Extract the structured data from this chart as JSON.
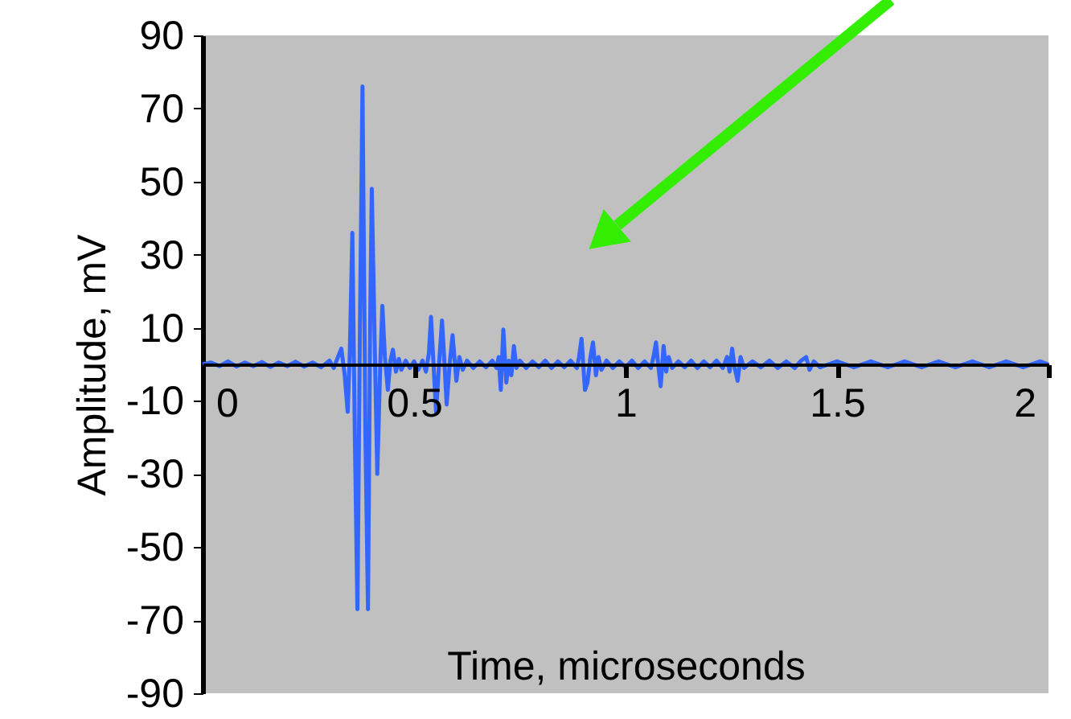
{
  "chart_data": {
    "type": "line",
    "xlabel": "Time, microseconds",
    "ylabel": "Amplitude, mV",
    "xlim": [
      0,
      2
    ],
    "xticks": [
      0,
      0.5,
      1,
      1.5,
      2
    ],
    "ylim": [
      -90,
      90
    ],
    "yticks": [
      -90,
      -70,
      -50,
      -30,
      -10,
      10,
      30,
      50,
      70,
      90
    ],
    "grid": false,
    "legend": false,
    "marker": "none",
    "line_style": "solid",
    "series": [
      {
        "color": "#3366ff",
        "x": [
          0,
          0.02,
          0.04,
          0.06,
          0.08,
          0.1,
          0.12,
          0.14,
          0.16,
          0.18,
          0.2,
          0.22,
          0.24,
          0.26,
          0.28,
          0.3,
          0.31,
          0.32,
          0.328,
          0.336,
          0.343,
          0.348,
          0.354,
          0.36,
          0.366,
          0.372,
          0.378,
          0.385,
          0.391,
          0.396,
          0.4,
          0.407,
          0.413,
          0.42,
          0.425,
          0.431,
          0.438,
          0.444,
          0.45,
          0.457,
          0.464,
          0.47,
          0.48,
          0.49,
          0.5,
          0.51,
          0.52,
          0.528,
          0.535,
          0.54,
          0.546,
          0.552,
          0.559,
          0.566,
          0.572,
          0.577,
          0.584,
          0.591,
          0.596,
          0.6,
          0.607,
          0.615,
          0.625,
          0.64,
          0.655,
          0.67,
          0.685,
          0.695,
          0.7,
          0.705,
          0.711,
          0.718,
          0.724,
          0.73,
          0.736,
          0.742,
          0.75,
          0.765,
          0.78,
          0.795,
          0.81,
          0.825,
          0.84,
          0.855,
          0.87,
          0.885,
          0.89,
          0.896,
          0.904,
          0.91,
          0.917,
          0.923,
          0.93,
          0.936,
          0.943,
          0.955,
          0.97,
          0.985,
          1.0,
          1.015,
          1.03,
          1.045,
          1.06,
          1.066,
          1.072,
          1.077,
          1.083,
          1.09,
          1.096,
          1.102,
          1.11,
          1.125,
          1.14,
          1.155,
          1.17,
          1.185,
          1.2,
          1.215,
          1.23,
          1.24,
          1.246,
          1.252,
          1.258,
          1.265,
          1.272,
          1.28,
          1.3,
          1.32,
          1.34,
          1.36,
          1.38,
          1.4,
          1.415,
          1.427,
          1.435,
          1.445,
          1.46,
          1.5,
          1.54,
          1.58,
          1.62,
          1.66,
          1.7,
          1.74,
          1.78,
          1.82,
          1.86,
          1.9,
          1.94,
          1.98,
          2
        ],
        "values": [
          0,
          0.5,
          -0.5,
          0.8,
          -0.6,
          0.5,
          -0.5,
          0.6,
          -0.7,
          0.5,
          -0.5,
          0.7,
          -0.6,
          0.5,
          -0.8,
          1,
          -1,
          2,
          4.3,
          -3,
          -13,
          3,
          36,
          -20,
          -67,
          10,
          76,
          -20,
          -67,
          10,
          48,
          5,
          -30,
          0,
          16,
          2,
          -7,
          1,
          4,
          -2,
          1.5,
          -1.5,
          1,
          -1,
          0.8,
          -1.5,
          1,
          -2,
          3,
          13,
          0,
          -13,
          0,
          12,
          0,
          -11,
          0,
          8,
          1,
          -4.5,
          2,
          -1.5,
          1,
          -1,
          0.8,
          -0.8,
          1,
          -1,
          2,
          -7,
          9.5,
          -5,
          1,
          -3,
          5,
          -1,
          1,
          -1,
          0.8,
          -0.8,
          1,
          -1,
          0.8,
          -0.8,
          1,
          -1,
          2,
          7,
          -7,
          -5,
          2,
          6,
          -3,
          2,
          -1.5,
          1,
          -1,
          0.8,
          -0.8,
          1,
          -1,
          0.8,
          -1,
          2,
          6,
          0,
          -6,
          5,
          -2,
          2,
          -1,
          0.8,
          -0.8,
          1,
          -1,
          0.8,
          -0.8,
          1,
          -1,
          2,
          -2,
          4.3,
          -1,
          -4.5,
          2,
          -1,
          0.8,
          -0.8,
          1,
          -1,
          0.8,
          -1,
          1,
          2,
          -1.5,
          0.8,
          -0.8,
          0.8,
          -0.8,
          0.8,
          -0.8,
          0.8,
          -0.8,
          0.8,
          -0.8,
          0.8,
          -0.8,
          0.8,
          -0.8,
          0.8,
          0
        ]
      }
    ]
  }
}
